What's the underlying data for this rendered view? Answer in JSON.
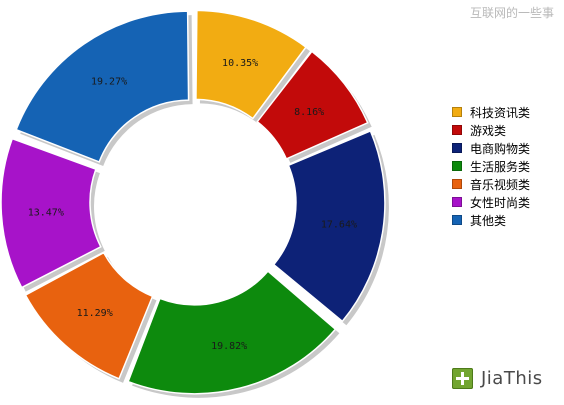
{
  "watermark": "互联网的一些事",
  "brand": {
    "name": "JiaThis",
    "icon": "plus-icon"
  },
  "chart_data": {
    "type": "pie",
    "variant": "donut-exploded",
    "title": "",
    "legend_position": "right",
    "categories": [
      "科技资讯类",
      "游戏类",
      "电商购物类",
      "生活服务类",
      "音乐视频类",
      "女性时尚类",
      "其他类"
    ],
    "values": [
      10.35,
      8.16,
      17.64,
      19.82,
      11.29,
      13.47,
      19.27
    ],
    "labels": [
      "10.35%",
      "8.16%",
      "17.64%",
      "19.82%",
      "11.29%",
      "13.47%",
      "19.27%"
    ],
    "colors": [
      "#f2ac12",
      "#c20a0a",
      "#0d2277",
      "#0d8a0d",
      "#e8620f",
      "#a713c9",
      "#1563b4"
    ]
  }
}
